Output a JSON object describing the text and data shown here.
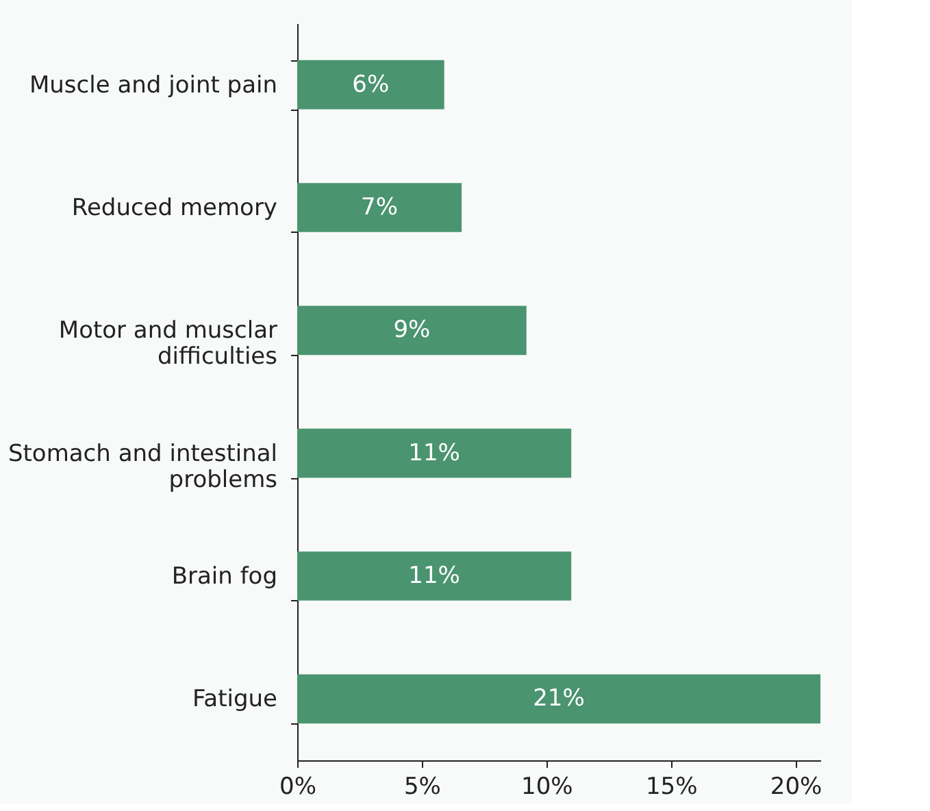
{
  "chart_data": {
    "type": "bar",
    "orientation": "horizontal",
    "categories": [
      "Muscle and joint pain",
      "Reduced memory",
      "Motor and musclar difficulties",
      "Stomach and intestinal problems",
      "Brain fog",
      "Fatigue"
    ],
    "values": [
      5.9,
      6.6,
      9.2,
      11,
      11,
      21
    ],
    "value_labels": [
      "6%",
      "7%",
      "9%",
      "11%",
      "11%",
      "21%"
    ],
    "color": "#4a9470",
    "xlim": [
      0,
      21
    ],
    "xticks": [
      {
        "value": 0,
        "label": "0%"
      },
      {
        "value": 5,
        "label": "5%"
      },
      {
        "value": 10,
        "label": "10%"
      },
      {
        "value": 15,
        "label": "15%"
      },
      {
        "value": 20,
        "label": "20%"
      }
    ],
    "grid": false
  }
}
